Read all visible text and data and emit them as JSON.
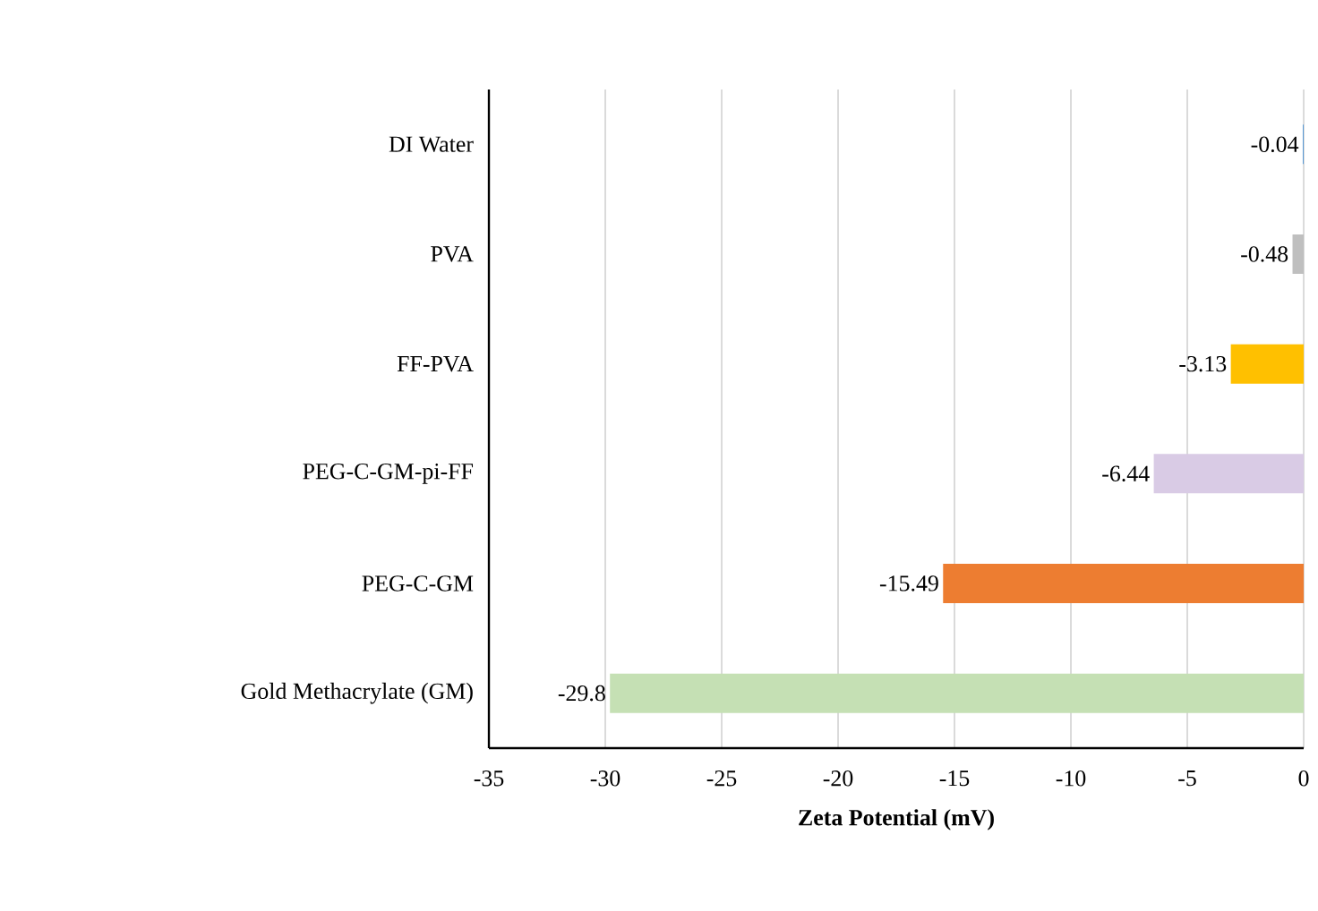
{
  "chart_data": {
    "type": "bar",
    "orientation": "horizontal",
    "xlabel": "Zeta Potential (mV)",
    "categories": [
      "DI Water",
      "PVA",
      "FF-PVA",
      "PEG-C-GM-pi-FF",
      "PEG-C-GM",
      "Gold Methacrylate (GM)"
    ],
    "values": [
      -0.04,
      -0.48,
      -3.13,
      -6.44,
      -15.49,
      -29.8
    ],
    "colors": [
      "#5b9bd5",
      "#bfbfbf",
      "#ffc000",
      "#d9cbe5",
      "#ed7d31",
      "#c5e0b4"
    ],
    "xlim": [
      -35,
      0
    ],
    "xticks": [
      -35,
      -30,
      -25,
      -20,
      -15,
      -10,
      -5,
      0
    ],
    "grid": "x",
    "data_labels": true
  }
}
